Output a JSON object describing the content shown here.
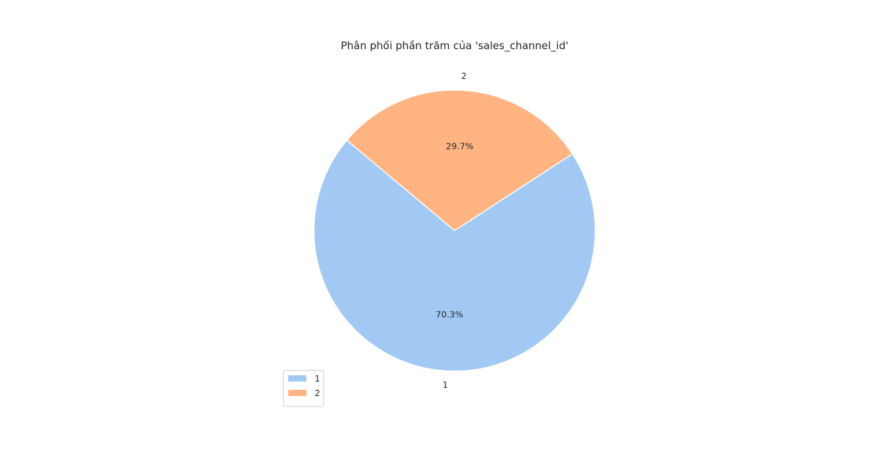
{
  "chart_data": {
    "type": "pie",
    "title": "Phân phối phần trăm của 'sales_channel_id'",
    "categories": [
      "1",
      "2"
    ],
    "values": [
      70.3,
      29.7
    ],
    "percent_labels": [
      "70.3%",
      "29.7%"
    ],
    "colors": [
      "#a1c9f4",
      "#ffb482"
    ],
    "legend": {
      "placement": "lower-left",
      "entries": [
        "1",
        "2"
      ]
    }
  }
}
